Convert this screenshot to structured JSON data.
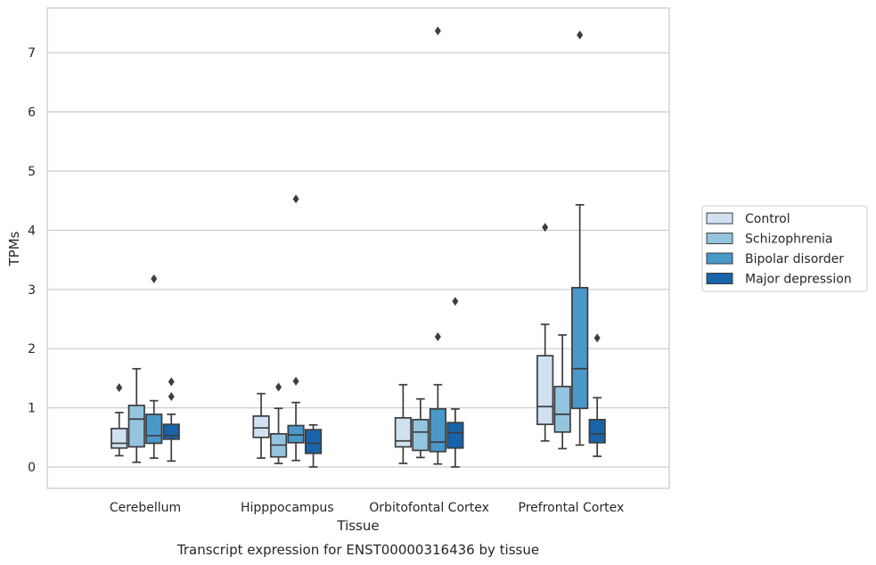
{
  "chart_data": {
    "type": "box",
    "title": "",
    "caption": "Transcript expression for ENST00000316436 by tissue",
    "xlabel": "Tissue",
    "ylabel": "TPMs",
    "ylim": [
      -0.35,
      7.75
    ],
    "yticks": [
      0,
      1,
      2,
      3,
      4,
      5,
      6,
      7
    ],
    "grid": "horizontal",
    "legend_position": "right",
    "categories": [
      "Cerebellum",
      "Hipppocampus",
      "Orbitofontal Cortex",
      "Prefrontal Cortex"
    ],
    "series": [
      {
        "name": "Control",
        "color": "#d0e1f2",
        "boxes": [
          {
            "whislo": 0.19,
            "q1": 0.32,
            "med": 0.4,
            "q3": 0.65,
            "whishi": 0.92,
            "fliers": [
              1.34
            ]
          },
          {
            "whislo": 0.15,
            "q1": 0.5,
            "med": 0.66,
            "q3": 0.86,
            "whishi": 1.24,
            "fliers": []
          },
          {
            "whislo": 0.06,
            "q1": 0.34,
            "med": 0.44,
            "q3": 0.83,
            "whishi": 1.39,
            "fliers": []
          },
          {
            "whislo": 0.44,
            "q1": 0.72,
            "med": 1.02,
            "q3": 1.88,
            "whishi": 2.41,
            "fliers": [
              4.05
            ]
          }
        ]
      },
      {
        "name": "Schizophrenia",
        "color": "#94c4df",
        "boxes": [
          {
            "whislo": 0.08,
            "q1": 0.34,
            "med": 0.81,
            "q3": 1.04,
            "whishi": 1.66,
            "fliers": []
          },
          {
            "whislo": 0.06,
            "q1": 0.17,
            "med": 0.37,
            "q3": 0.56,
            "whishi": 0.99,
            "fliers": [
              1.35
            ]
          },
          {
            "whislo": 0.16,
            "q1": 0.28,
            "med": 0.59,
            "q3": 0.8,
            "whishi": 1.15,
            "fliers": []
          },
          {
            "whislo": 0.31,
            "q1": 0.59,
            "med": 0.89,
            "q3": 1.36,
            "whishi": 2.23,
            "fliers": []
          }
        ]
      },
      {
        "name": "Bipolar disorder",
        "color": "#4a98c9",
        "boxes": [
          {
            "whislo": 0.15,
            "q1": 0.4,
            "med": 0.53,
            "q3": 0.89,
            "whishi": 1.12,
            "fliers": [
              3.18
            ]
          },
          {
            "whislo": 0.11,
            "q1": 0.41,
            "med": 0.54,
            "q3": 0.7,
            "whishi": 1.09,
            "fliers": [
              1.45,
              4.53
            ]
          },
          {
            "whislo": 0.05,
            "q1": 0.26,
            "med": 0.42,
            "q3": 0.98,
            "whishi": 1.39,
            "fliers": [
              2.2,
              7.37
            ]
          },
          {
            "whislo": 0.37,
            "q1": 0.99,
            "med": 1.66,
            "q3": 3.03,
            "whishi": 4.43,
            "fliers": [
              7.3
            ]
          }
        ]
      },
      {
        "name": "Major depression",
        "color": "#1764ab",
        "boxes": [
          {
            "whislo": 0.1,
            "q1": 0.47,
            "med": 0.53,
            "q3": 0.72,
            "whishi": 0.89,
            "fliers": [
              1.19,
              1.44
            ]
          },
          {
            "whislo": 0.0,
            "q1": 0.23,
            "med": 0.4,
            "q3": 0.63,
            "whishi": 0.71,
            "fliers": []
          },
          {
            "whislo": 0.0,
            "q1": 0.32,
            "med": 0.58,
            "q3": 0.75,
            "whishi": 0.98,
            "fliers": [
              2.8
            ]
          },
          {
            "whislo": 0.18,
            "q1": 0.41,
            "med": 0.56,
            "q3": 0.8,
            "whishi": 1.17,
            "fliers": [
              2.18
            ]
          }
        ]
      }
    ]
  }
}
